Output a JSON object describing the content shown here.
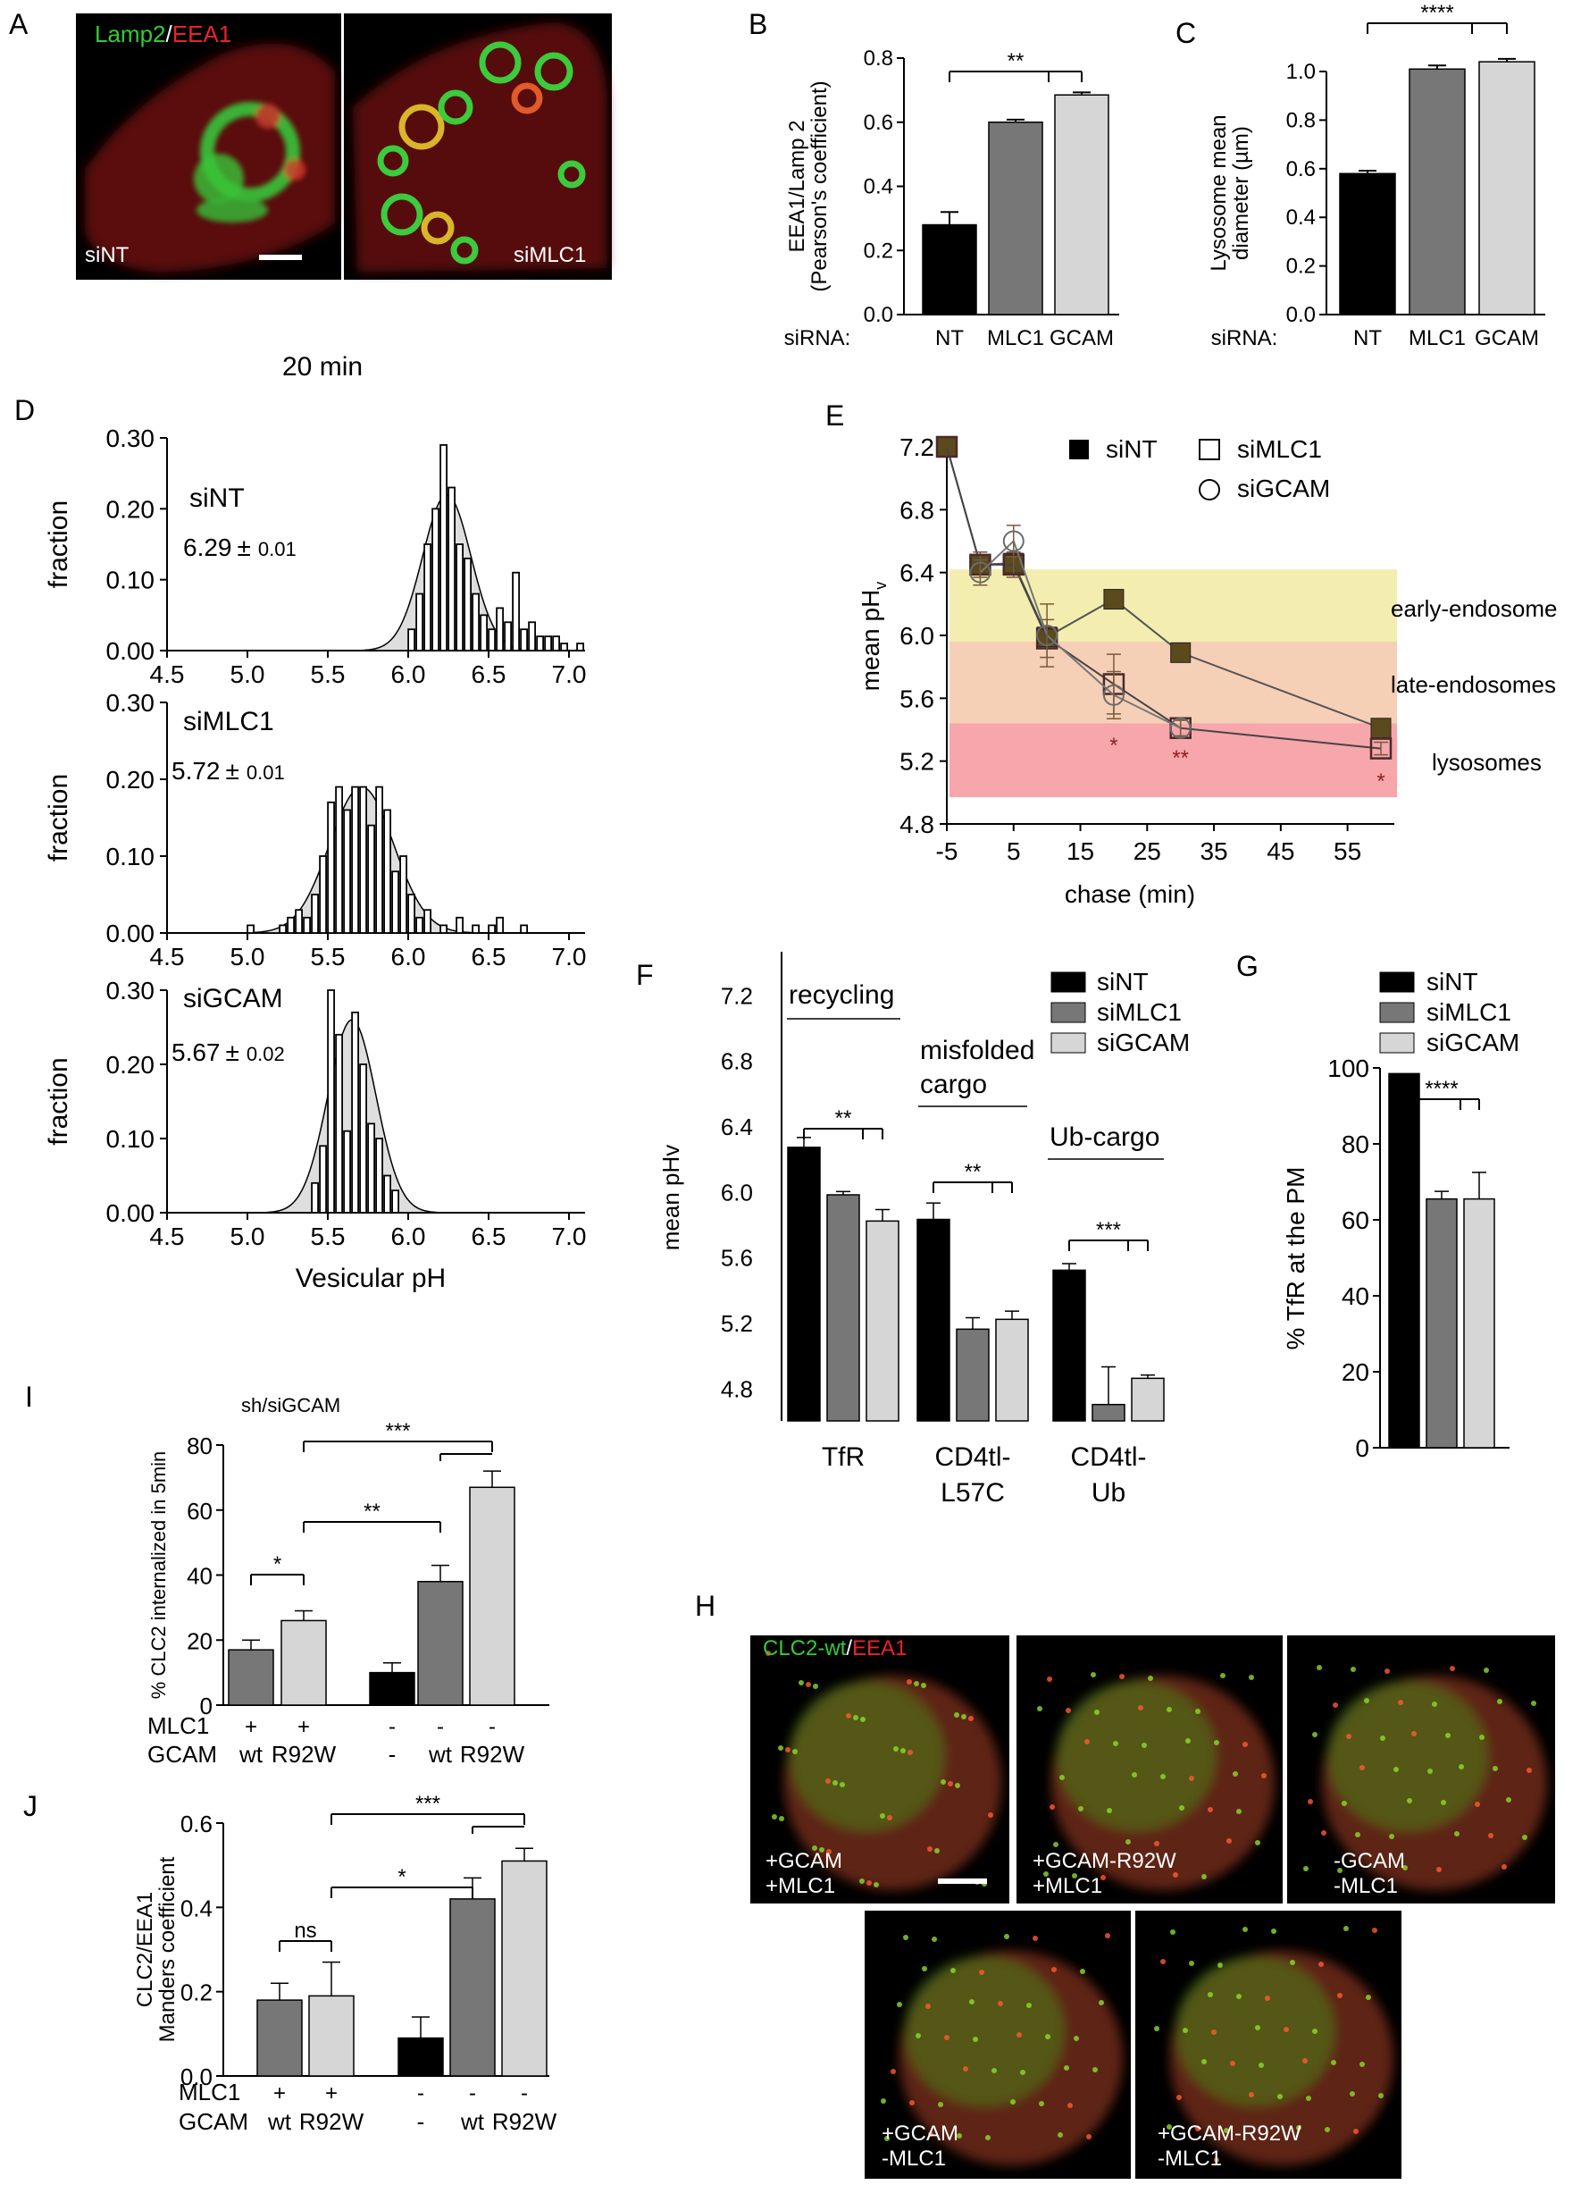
{
  "figure": {
    "panel_letters": [
      "A",
      "B",
      "C",
      "D",
      "E",
      "F",
      "G",
      "H",
      "I",
      "J"
    ],
    "colors": {
      "black": "#000000",
      "dark_gray": "#777777",
      "light_gray": "#d6d6d6",
      "green": "#33cc33",
      "red": "#e8242a"
    }
  },
  "panel_a": {
    "stain_green": "Lamp2",
    "stain_sep": "/",
    "stain_red": "EEA1",
    "image_labels": [
      "siNT",
      "siMLC1"
    ]
  },
  "panel_d_header": "20 min",
  "panel_h": {
    "stain_green": "CLC2-wt",
    "stain_sep": "/",
    "stain_red": "EEA1",
    "image_labels": [
      [
        "+GCAM",
        "+MLC1"
      ],
      [
        "+GCAM-R92W",
        "+MLC1"
      ],
      [
        "-GCAM",
        "-MLC1"
      ],
      [
        "+GCAM",
        "-MLC1"
      ],
      [
        "+GCAM-R92W",
        "-MLC1"
      ]
    ]
  },
  "chart_data": [
    {
      "panel": "B",
      "type": "bar",
      "ylabel": [
        "EEA1/Lamp 2",
        "(Pearson's coefficient)"
      ],
      "cond_label": "siRNA:",
      "categories": [
        "NT",
        "MLC1",
        "GCAM"
      ],
      "values": [
        0.28,
        0.6,
        0.685
      ],
      "errors": [
        0.04,
        0.008,
        0.008
      ],
      "ylim": [
        0,
        0.8
      ],
      "yticks": [
        "0.0",
        "0.2",
        "0.4",
        "0.6",
        "0.8"
      ],
      "sig": [
        {
          "label": "**",
          "from": 0,
          "to": [
            1,
            2
          ]
        }
      ]
    },
    {
      "panel": "C",
      "type": "bar",
      "ylabel": [
        "Lysosome mean",
        "diameter (µm)"
      ],
      "cond_label": "siRNA:",
      "categories": [
        "NT",
        "MLC1",
        "GCAM"
      ],
      "values": [
        0.58,
        1.01,
        1.04
      ],
      "errors": [
        0.012,
        0.015,
        0.012
      ],
      "ylim": [
        0,
        1.0
      ],
      "yticks": [
        "0.0",
        "0.2",
        "0.4",
        "0.6",
        "0.8",
        "1.0"
      ],
      "sig": [
        {
          "label": "****",
          "from": 0,
          "to": [
            1,
            2
          ]
        }
      ]
    },
    {
      "panel": "D",
      "type": "histogram",
      "xlabel": "Vesicular pH",
      "ylabel": "fraction",
      "xlim": [
        4.5,
        7.1
      ],
      "xticks": [
        "4.5",
        "5.0",
        "5.5",
        "6.0",
        "6.5",
        "7.0"
      ],
      "yticks": [
        "0.00",
        "0.10",
        "0.20",
        "0.30"
      ],
      "ylim": [
        0,
        0.3
      ],
      "bin_width": 0.05,
      "sub": [
        {
          "name": "siNT",
          "mean": "6.29",
          "pm": "±",
          "sd": "0.01",
          "fit_mu": 6.24,
          "fit_sigma": 0.15,
          "fit_peak": 0.22,
          "bins": [
            6.02,
            6.07,
            6.12,
            6.17,
            6.22,
            6.27,
            6.32,
            6.37,
            6.42,
            6.47,
            6.52,
            6.57,
            6.62,
            6.67,
            6.72,
            6.77,
            6.82,
            6.87,
            6.92,
            6.97,
            7.07
          ],
          "values": [
            0.03,
            0.08,
            0.15,
            0.2,
            0.29,
            0.23,
            0.15,
            0.13,
            0.08,
            0.05,
            0.03,
            0.06,
            0.04,
            0.11,
            0.03,
            0.04,
            0.02,
            0.02,
            0.02,
            0.01,
            0.01
          ]
        },
        {
          "name": "siMLC1",
          "mean": "5.72",
          "pm": "±",
          "sd": "0.01",
          "fit_mu": 5.71,
          "fit_sigma": 0.2,
          "fit_peak": 0.19,
          "bins": [
            5.02,
            5.22,
            5.27,
            5.32,
            5.37,
            5.42,
            5.47,
            5.52,
            5.57,
            5.62,
            5.67,
            5.72,
            5.77,
            5.82,
            5.87,
            5.92,
            5.97,
            6.02,
            6.07,
            6.12,
            6.22,
            6.32,
            6.42,
            6.52,
            6.57,
            6.72
          ],
          "values": [
            0.01,
            0.01,
            0.02,
            0.03,
            0.02,
            0.05,
            0.1,
            0.17,
            0.19,
            0.16,
            0.19,
            0.19,
            0.14,
            0.19,
            0.16,
            0.08,
            0.1,
            0.05,
            0.02,
            0.03,
            0.01,
            0.02,
            0.01,
            0.01,
            0.02,
            0.01
          ]
        },
        {
          "name": "siGCAM",
          "mean": "5.67",
          "pm": "±",
          "sd": "0.02",
          "fit_mu": 5.65,
          "fit_sigma": 0.15,
          "fit_peak": 0.26,
          "bins": [
            5.42,
            5.47,
            5.52,
            5.57,
            5.62,
            5.67,
            5.72,
            5.77,
            5.82,
            5.87,
            5.92
          ],
          "values": [
            0.04,
            0.09,
            0.3,
            0.24,
            0.11,
            0.27,
            0.2,
            0.12,
            0.1,
            0.05,
            0.03
          ]
        }
      ]
    },
    {
      "panel": "E",
      "type": "line",
      "xlabel": "chase (min)",
      "ylabel": "mean pH",
      "ylabel_sub": "v",
      "xlim": [
        -5,
        60
      ],
      "xticks": [
        -5,
        5,
        15,
        25,
        35,
        45,
        55
      ],
      "ylim": [
        4.8,
        7.2
      ],
      "yticks": [
        "4.8",
        "5.2",
        "5.6",
        "6.0",
        "6.4",
        "6.8",
        "7.2"
      ],
      "bands": [
        {
          "name": "early-endosome",
          "from": 5.96,
          "to": 6.42,
          "color": "#f3eeaf"
        },
        {
          "name": "late-endosomes",
          "from": 5.44,
          "to": 5.96,
          "color": "#f6cfb7"
        },
        {
          "name": "lysosomes",
          "from": 4.97,
          "to": 5.44,
          "color": "#f7a6ab"
        }
      ],
      "legend": [
        "siNT",
        "siMLC1",
        "siGCAM"
      ],
      "series": [
        {
          "name": "siNT",
          "marker": "filled-square",
          "x": [
            -5,
            0,
            5,
            10,
            20,
            30,
            60
          ],
          "y": [
            7.2,
            6.45,
            6.46,
            5.99,
            6.23,
            5.89,
            5.41
          ],
          "err": [
            0,
            0.05,
            0.05,
            0.05,
            0.03,
            0.03,
            0.02
          ]
        },
        {
          "name": "siMLC1",
          "marker": "open-square",
          "x": [
            -5,
            0,
            5,
            10,
            20,
            30,
            60
          ],
          "y": [
            7.2,
            6.45,
            6.45,
            5.98,
            5.69,
            5.41,
            5.28
          ],
          "err": [
            0,
            0.08,
            0.08,
            0.12,
            0.19,
            0.05,
            0.04
          ]
        },
        {
          "name": "siGCAM",
          "marker": "open-circle",
          "x": [
            0,
            5,
            10,
            20,
            30
          ],
          "y": [
            6.4,
            6.6,
            6.0,
            5.62,
            5.41
          ],
          "err": [
            0.08,
            0.1,
            0.2,
            0.15,
            0.05
          ]
        }
      ],
      "sig": [
        {
          "x": 20,
          "label": "*"
        },
        {
          "x": 30,
          "label": "**"
        },
        {
          "x": 60,
          "label": "*"
        }
      ]
    },
    {
      "panel": "F",
      "type": "bar",
      "ylabel": "mean pHv",
      "ylim": [
        4.6,
        7.3
      ],
      "yticks": [
        "4.8",
        "5.2",
        "5.6",
        "6.0",
        "6.4",
        "6.8",
        "7.2"
      ],
      "legend": [
        "siNT",
        "siMLC1",
        "siGCAM"
      ],
      "groups": [
        {
          "label": [
            "TfR"
          ],
          "header": [
            "recycling"
          ],
          "values": [
            6.27,
            5.98,
            5.82
          ],
          "errors": [
            0.06,
            0.02,
            0.07
          ],
          "sig": "**"
        },
        {
          "label": [
            "CD4tl-",
            "L57C"
          ],
          "header": [
            "misfolded",
            "cargo"
          ],
          "values": [
            5.83,
            5.16,
            5.22
          ],
          "errors": [
            0.1,
            0.07,
            0.05
          ],
          "sig": "**"
        },
        {
          "label": [
            "CD4tl-",
            "Ub"
          ],
          "header": [
            "Ub-cargo"
          ],
          "values": [
            5.52,
            4.7,
            4.86
          ],
          "errors": [
            0.04,
            0.23,
            0.02
          ],
          "sig": "***"
        }
      ]
    },
    {
      "panel": "G",
      "type": "bar",
      "ylabel": "% TfR at the PM",
      "legend": [
        "siNT",
        "siMLC1",
        "siGCAM"
      ],
      "values": [
        98.5,
        65.5,
        65.5
      ],
      "errors": [
        0,
        2,
        7
      ],
      "ylim": [
        0,
        100
      ],
      "yticks": [
        "0",
        "20",
        "40",
        "60",
        "80",
        "100"
      ],
      "sig": [
        {
          "label": "****",
          "from": 0,
          "to": [
            1,
            2
          ]
        }
      ]
    },
    {
      "panel": "I",
      "type": "bar",
      "title": "sh/siGCAM",
      "ylabel": "% CLC2 internalized in 5min",
      "row_labels": [
        "MLC1",
        "GCAM"
      ],
      "columns": [
        {
          "mlc1": "+",
          "gcam": "wt",
          "value": 17,
          "error": 3,
          "color": "dark"
        },
        {
          "mlc1": "+",
          "gcam": "R92W",
          "value": 26,
          "error": 3,
          "color": "light"
        },
        {
          "mlc1": "-",
          "gcam": "-",
          "value": 10,
          "error": 3,
          "color": "black"
        },
        {
          "mlc1": "-",
          "gcam": "wt",
          "value": 38,
          "error": 5,
          "color": "dark"
        },
        {
          "mlc1": "-",
          "gcam": "R92W",
          "value": 67,
          "error": 5,
          "color": "light"
        }
      ],
      "ylim": [
        0,
        80
      ],
      "yticks": [
        "0",
        "20",
        "40",
        "60",
        "80"
      ],
      "sig": [
        {
          "label": "*",
          "a": 0,
          "b": 1
        },
        {
          "label": "**",
          "a": 1,
          "b": 3
        },
        {
          "label": "***",
          "a": 1,
          "b": 4
        }
      ]
    },
    {
      "panel": "J",
      "type": "bar",
      "ylabel": [
        "CLC2/EEA1",
        "Manders  coefficient"
      ],
      "row_labels": [
        "MLC1",
        "GCAM"
      ],
      "columns": [
        {
          "mlc1": "+",
          "gcam": "wt",
          "value": 0.18,
          "error": 0.04,
          "color": "dark"
        },
        {
          "mlc1": "+",
          "gcam": "R92W",
          "value": 0.19,
          "error": 0.08,
          "color": "light"
        },
        {
          "mlc1": "-",
          "gcam": "-",
          "value": 0.09,
          "error": 0.05,
          "color": "black"
        },
        {
          "mlc1": "-",
          "gcam": "wt",
          "value": 0.42,
          "error": 0.05,
          "color": "dark"
        },
        {
          "mlc1": "-",
          "gcam": "R92W",
          "value": 0.51,
          "error": 0.03,
          "color": "light"
        }
      ],
      "ylim": [
        0,
        0.6
      ],
      "yticks": [
        "0.0",
        "0.2",
        "0.4",
        "0.6"
      ],
      "sig": [
        {
          "label": "ns",
          "a": 0,
          "b": 1
        },
        {
          "label": "*",
          "a": 1,
          "b": 3
        },
        {
          "label": "***",
          "a": 1,
          "b": 4
        }
      ]
    }
  ]
}
